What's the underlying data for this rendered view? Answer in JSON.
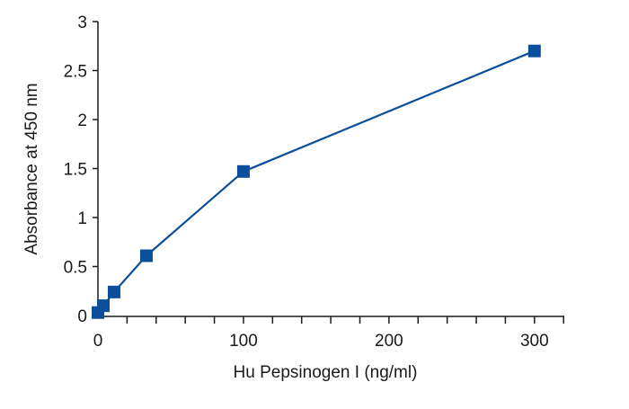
{
  "chart_data": {
    "type": "line",
    "title": "",
    "xlabel": "Hu Pepsinogen I (ng/ml)",
    "ylabel": "Absorbance at 450 nm",
    "xlim": [
      0,
      315
    ],
    "ylim": [
      0,
      3
    ],
    "xticks": [
      0,
      100,
      200,
      300
    ],
    "yticks": [
      0,
      0.5,
      1,
      1.5,
      2,
      2.5,
      3
    ],
    "grid": false,
    "legend": "none",
    "series": [
      {
        "color": "#0b4f9c",
        "marker": "square",
        "points": [
          {
            "x": 0,
            "y": 0.03
          },
          {
            "x": 3.7,
            "y": 0.1
          },
          {
            "x": 11.1,
            "y": 0.24
          },
          {
            "x": 33.3,
            "y": 0.61
          },
          {
            "x": 100,
            "y": 1.47
          },
          {
            "x": 300,
            "y": 2.7
          }
        ]
      }
    ]
  }
}
